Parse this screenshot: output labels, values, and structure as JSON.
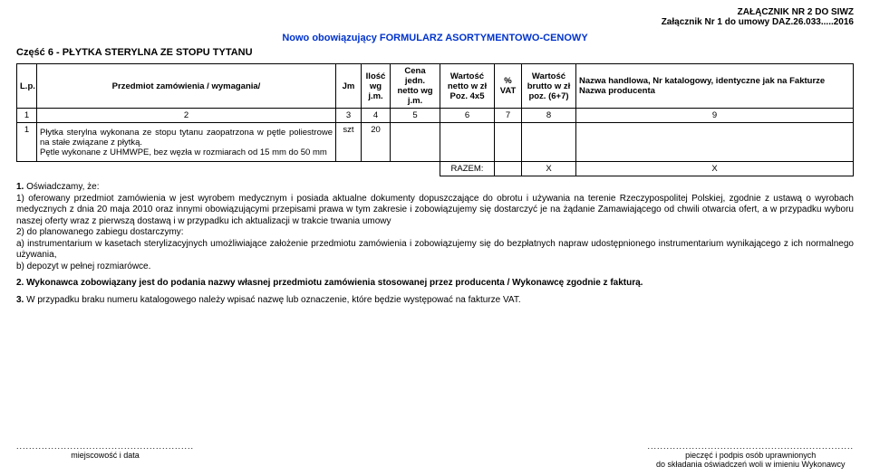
{
  "header": {
    "line1": "ZAŁĄCZNIK NR 2 DO SIWZ",
    "line2": "Załącznik Nr 1 do umowy DAZ.26.033.....2016"
  },
  "title": "Nowo obowiązujący FORMULARZ ASORTYMENTOWO-CENOWY",
  "subtitle": "Część 6 - PŁYTKA STERYLNA ZE STOPU TYTANU",
  "table": {
    "headers": {
      "lp": "L.p.",
      "desc": "Przedmiot zamówienia / wymagania/",
      "jm": "Jm",
      "ilosc": "Ilość wg j.m.",
      "cena": "Cena jedn. netto wg j.m.",
      "wnetto": "Wartość netto w zł Poz. 4x5",
      "vat": "% VAT",
      "wbrutto": "Wartość brutto w zł poz. (6+7)",
      "nazwa": "Nazwa handlowa, Nr katalogowy, identyczne jak na Fakturze Nazwa producenta"
    },
    "nums": {
      "c1": "1",
      "c2": "2",
      "c3": "3",
      "c4": "4",
      "c5": "5",
      "c6": "6",
      "c7": "7",
      "c8": "8",
      "c9": "9"
    },
    "row": {
      "lp": "1",
      "desc": "Płytka sterylna wykonana ze stopu tytanu zaopatrzona w pętle poliestrowe na stałe związane z płytką.\nPętle wykonane z UHMWPE, bez węzła w rozmiarach od  15 mm do 50 mm",
      "jm": "szt",
      "ilosc": "20"
    },
    "razem": {
      "label": "RAZEM:",
      "x1": "X",
      "x2": "X"
    }
  },
  "paragraphs": {
    "p1_lead": "1.",
    "p1_intro": " Oświadczamy, że:",
    "p1_body": "1) oferowany przedmiot zamówienia w jest wyrobem medycznym i posiada  aktualne dokumenty dopuszczające do obrotu i używania na terenie Rzeczypospolitej Polskiej,  zgodnie z ustawą o wyrobach medycznych z dnia 20 maja 2010 oraz innymi obowiązującymi przepisami prawa w tym zakresie i zobowiązujemy się dostarczyć je na żądanie  Zamawiającego od chwili otwarcia ofert, a  w przypadku wyboru naszej oferty wraz z pierwszą dostawą i w przypadku ich aktualizacji w trakcie trwania umowy\n2) do planowanego zabiegu dostarczymy:\na) instrumentarium w kasetach sterylizacyjnych umożliwiające założenie przedmiotu zamówienia i zobowiązujemy się do bezpłatnych napraw udostępnionego instrumentarium wynikającego z ich normalnego używania,\nb) depozyt w pełnej rozmiarówce.",
    "p2_lead": "2.",
    "p2": " Wykonawca zobowiązany jest do podania nazwy własnej przedmiotu zamówienia stosowanej przez producenta / Wykonawcę zgodnie z fakturą.",
    "p3_lead": "3.",
    "p3": "   W przypadku braku numeru katalogowego należy wpisać nazwę lub oznaczenie, które będzie występować na fakturze VAT."
  },
  "signatures": {
    "left_dots": "........................................................",
    "left": "miejscowość i data",
    "right_dots": ".................................................................",
    "right1": "pieczęć i podpis osób uprawnionych",
    "right2": "do składania oświadczeń woli  w imieniu Wykonawcy"
  }
}
